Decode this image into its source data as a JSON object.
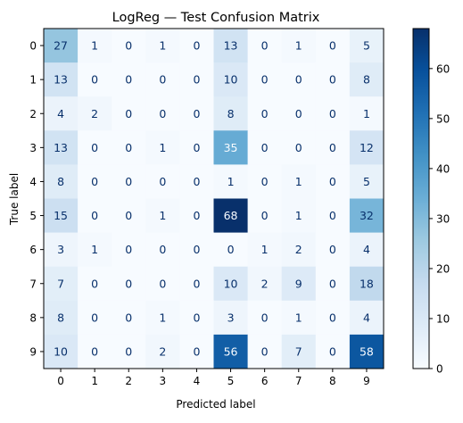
{
  "chart_data": {
    "type": "heatmap",
    "title": "LogReg — Test Confusion Matrix",
    "xlabel": "Predicted label",
    "ylabel": "True label",
    "x_categories": [
      "0",
      "1",
      "2",
      "3",
      "4",
      "5",
      "6",
      "7",
      "8",
      "9"
    ],
    "y_categories": [
      "0",
      "1",
      "2",
      "3",
      "4",
      "5",
      "6",
      "7",
      "8",
      "9"
    ],
    "matrix": [
      [
        27,
        1,
        0,
        1,
        0,
        13,
        0,
        1,
        0,
        5
      ],
      [
        13,
        0,
        0,
        0,
        0,
        10,
        0,
        0,
        0,
        8
      ],
      [
        4,
        2,
        0,
        0,
        0,
        8,
        0,
        0,
        0,
        1
      ],
      [
        13,
        0,
        0,
        1,
        0,
        35,
        0,
        0,
        0,
        12
      ],
      [
        8,
        0,
        0,
        0,
        0,
        1,
        0,
        1,
        0,
        5
      ],
      [
        15,
        0,
        0,
        1,
        0,
        68,
        0,
        1,
        0,
        32
      ],
      [
        3,
        1,
        0,
        0,
        0,
        0,
        1,
        2,
        0,
        4
      ],
      [
        7,
        0,
        0,
        0,
        0,
        10,
        2,
        9,
        0,
        18
      ],
      [
        8,
        0,
        0,
        1,
        0,
        3,
        0,
        1,
        0,
        4
      ],
      [
        10,
        0,
        0,
        2,
        0,
        56,
        0,
        7,
        0,
        58
      ]
    ],
    "colormap": "Blues",
    "color_range": [
      0,
      68
    ],
    "colorbar_ticks": [
      0,
      10,
      20,
      30,
      40,
      50,
      60
    ],
    "colors": {
      "low": "#f7fbff",
      "high": "#08306b",
      "text_dark": "#08306b",
      "text_light": "#f7fbff"
    },
    "grid": false,
    "legend": "colorbar-right"
  }
}
